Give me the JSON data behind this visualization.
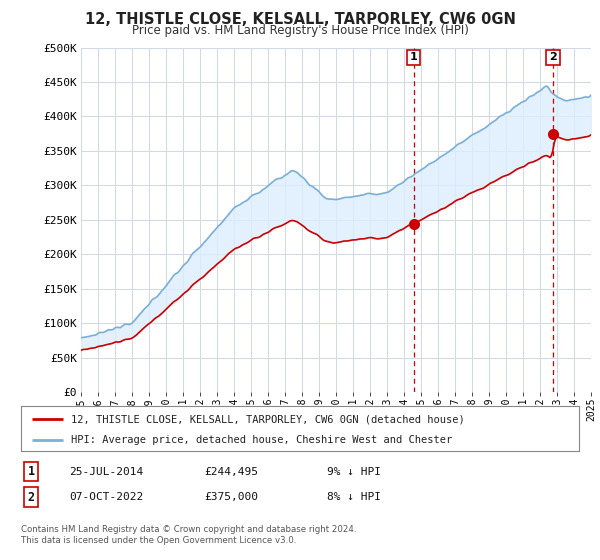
{
  "title": "12, THISTLE CLOSE, KELSALL, TARPORLEY, CW6 0GN",
  "subtitle": "Price paid vs. HM Land Registry's House Price Index (HPI)",
  "ylim": [
    0,
    500000
  ],
  "yticks": [
    0,
    50000,
    100000,
    150000,
    200000,
    250000,
    300000,
    350000,
    400000,
    450000,
    500000
  ],
  "ytick_labels": [
    "£0",
    "£50K",
    "£100K",
    "£150K",
    "£200K",
    "£250K",
    "£300K",
    "£350K",
    "£400K",
    "£450K",
    "£500K"
  ],
  "background_color": "#ffffff",
  "grid_color": "#d0d8e4",
  "hpi_color": "#7bafd4",
  "hpi_fill_color": "#ddeeff",
  "price_color": "#cc0000",
  "vline_color": "#cc0000",
  "transaction1_date": 2014.56,
  "transaction1_price": 244495,
  "transaction1_label": "1",
  "transaction2_date": 2022.77,
  "transaction2_price": 375000,
  "transaction2_label": "2",
  "legend_line1": "12, THISTLE CLOSE, KELSALL, TARPORLEY, CW6 0GN (detached house)",
  "legend_line2": "HPI: Average price, detached house, Cheshire West and Chester",
  "note1_num": "1",
  "note1_date": "25-JUL-2014",
  "note1_price": "£244,495",
  "note1_hpi": "9% ↓ HPI",
  "note2_num": "2",
  "note2_date": "07-OCT-2022",
  "note2_price": "£375,000",
  "note2_hpi": "8% ↓ HPI",
  "footer": "Contains HM Land Registry data © Crown copyright and database right 2024.\nThis data is licensed under the Open Government Licence v3.0."
}
